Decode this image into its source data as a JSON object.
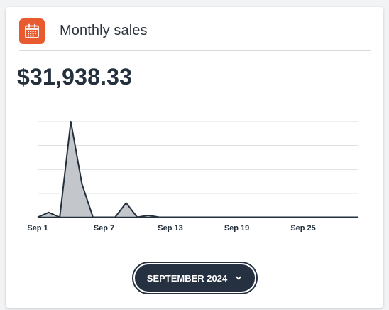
{
  "card": {
    "title": "Monthly sales",
    "icon": "calendar-icon",
    "total": "$31,938.33"
  },
  "colors": {
    "icon_bg": "#e85a2f",
    "area_fill": "#c3c7cb",
    "line": "#25303d",
    "button_bg": "#253040"
  },
  "month_selector": {
    "label": "SEPTEMBER 2024",
    "icon": "chevron-down-icon"
  },
  "chart_data": {
    "type": "area",
    "title": "",
    "xlabel": "",
    "ylabel": "",
    "x_ticks": [
      "Sep 1",
      "Sep 7",
      "Sep 13",
      "Sep 19",
      "Sep 25"
    ],
    "x": [
      1,
      2,
      3,
      4,
      5,
      6,
      7,
      8,
      9,
      10,
      11,
      12,
      13,
      14,
      15,
      16,
      17,
      18,
      19,
      20,
      21,
      22,
      23,
      24,
      25,
      26,
      27,
      28,
      29,
      30
    ],
    "ylim": [
      0,
      4
    ],
    "grid": true,
    "series": [
      {
        "values": [
          0,
          0.2,
          0,
          4,
          1.4,
          0,
          0,
          0,
          0.6,
          0,
          0.08,
          0,
          0,
          0,
          0,
          0,
          0,
          0,
          0,
          0,
          0,
          0,
          0,
          0,
          0,
          0,
          0,
          0,
          0,
          0
        ]
      }
    ]
  }
}
